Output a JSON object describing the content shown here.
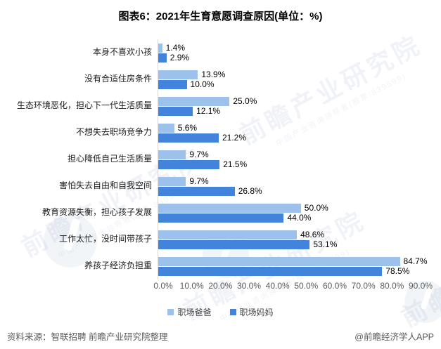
{
  "title": "图表6：2021年生育意愿调查原因(单位：%)",
  "chart_data": {
    "type": "bar",
    "orientation": "horizontal",
    "title": "图表6：2021年生育意愿调查原因(单位：%)",
    "categories": [
      "本身不喜欢小孩",
      "没有合适住房条件",
      "生态环境恶化，担心下一代生活质量",
      "不想失去职场竞争力",
      "担心降低自己生活质量",
      "害怕失去自由和自我空间",
      "教育资源失衡，担心孩子发展",
      "工作太忙，没时间带孩子",
      "养孩子经济负担重"
    ],
    "series": [
      {
        "name": "职场爸爸",
        "color": "#9CC2EC",
        "values": [
          1.4,
          13.9,
          25.0,
          5.6,
          9.7,
          9.7,
          50.0,
          48.6,
          84.7
        ]
      },
      {
        "name": "职场妈妈",
        "color": "#4284DC",
        "values": [
          2.9,
          10.0,
          12.1,
          21.2,
          21.5,
          26.8,
          44.0,
          53.1,
          78.5
        ]
      }
    ],
    "value_suffix": "%",
    "x_ticks": [
      "0.0%",
      "10.0%",
      "20.0%",
      "30.0%",
      "40.0%",
      "50.0%",
      "60.0%",
      "70.0%",
      "80.0%",
      "90.0%"
    ],
    "xlim": [
      0,
      90
    ],
    "grid": false,
    "legend_position": "bottom",
    "axis_line_color": "#D9D9D9"
  },
  "footer": {
    "source": "资料来源：智联招聘 前瞻产业研究院整理",
    "credit": "@前瞻经济学人APP"
  },
  "watermark": {
    "text": "前瞻产业研究院",
    "subtext": "中国产业咨询领导者(股票:839599)"
  }
}
